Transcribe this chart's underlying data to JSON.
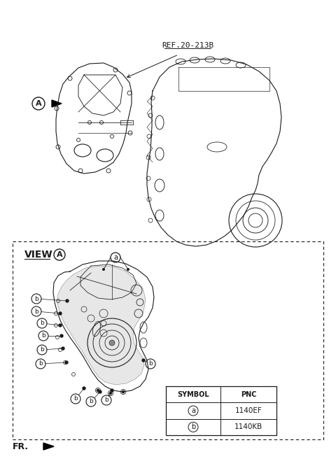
{
  "bg_color": "#ffffff",
  "line_color": "#1a1a1a",
  "ref_label": "REF.20-213B",
  "view_label": "VIEW",
  "fr_label": "FR.",
  "symbol_col": "SYMBOL",
  "pnc_col": "PNC",
  "rows": [
    {
      "symbol": "a",
      "pnc": "1140EF"
    },
    {
      "symbol": "b",
      "pnc": "1140KB"
    }
  ],
  "figsize": [
    4.8,
    6.56
  ],
  "dpi": 100
}
